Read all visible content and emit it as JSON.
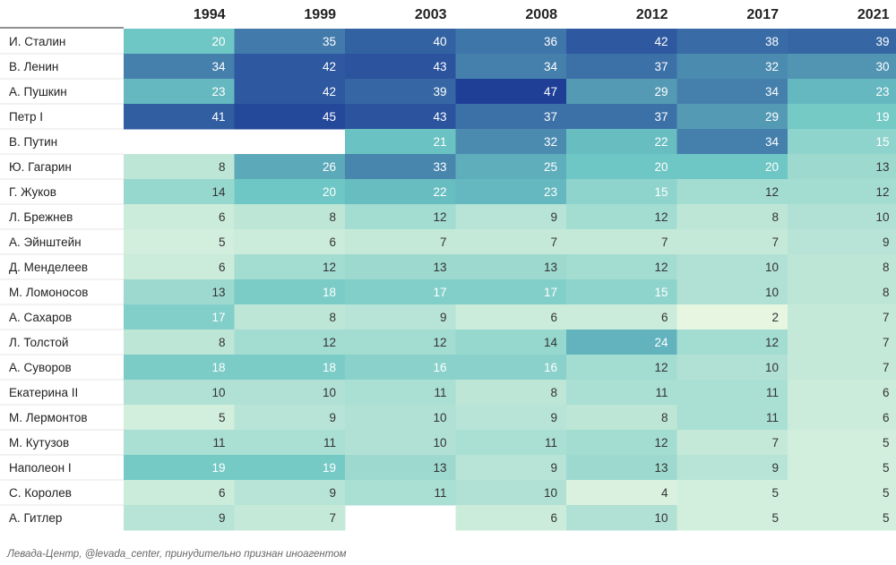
{
  "chart_data": {
    "type": "heatmap",
    "columns": [
      "1994",
      "1999",
      "2003",
      "2008",
      "2012",
      "2017",
      "2021"
    ],
    "rows": [
      {
        "name": "И. Сталин",
        "values": [
          20,
          35,
          40,
          36,
          42,
          38,
          39
        ]
      },
      {
        "name": "В. Ленин",
        "values": [
          34,
          42,
          43,
          34,
          37,
          32,
          30
        ]
      },
      {
        "name": "А. Пушкин",
        "values": [
          23,
          42,
          39,
          47,
          29,
          34,
          23
        ]
      },
      {
        "name": "Петр I",
        "values": [
          41,
          45,
          43,
          37,
          37,
          29,
          19
        ]
      },
      {
        "name": "В. Путин",
        "values": [
          null,
          null,
          21,
          32,
          22,
          34,
          15
        ]
      },
      {
        "name": "Ю. Гагарин",
        "values": [
          8,
          26,
          33,
          25,
          20,
          20,
          13
        ]
      },
      {
        "name": "Г. Жуков",
        "values": [
          14,
          20,
          22,
          23,
          15,
          12,
          12
        ]
      },
      {
        "name": "Л. Брежнев",
        "values": [
          6,
          8,
          12,
          9,
          12,
          8,
          10
        ]
      },
      {
        "name": "А. Эйнштейн",
        "values": [
          5,
          6,
          7,
          7,
          7,
          7,
          9
        ]
      },
      {
        "name": "Д. Менделеев",
        "values": [
          6,
          12,
          13,
          13,
          12,
          10,
          8
        ]
      },
      {
        "name": "М. Ломоносов",
        "values": [
          13,
          18,
          17,
          17,
          15,
          10,
          8
        ]
      },
      {
        "name": "А. Сахаров",
        "values": [
          17,
          8,
          9,
          6,
          6,
          2,
          7
        ]
      },
      {
        "name": "Л. Толстой",
        "values": [
          8,
          12,
          12,
          14,
          24,
          12,
          7
        ]
      },
      {
        "name": "А. Суворов",
        "values": [
          18,
          18,
          16,
          16,
          12,
          10,
          7
        ]
      },
      {
        "name": "Екатерина II",
        "values": [
          10,
          10,
          11,
          8,
          11,
          11,
          6
        ]
      },
      {
        "name": "М. Лермонтов",
        "values": [
          5,
          9,
          10,
          9,
          8,
          11,
          6
        ]
      },
      {
        "name": "М. Кутузов",
        "values": [
          11,
          11,
          10,
          11,
          12,
          7,
          5
        ]
      },
      {
        "name": "Наполеон I",
        "values": [
          19,
          19,
          13,
          9,
          13,
          9,
          5
        ]
      },
      {
        "name": "С. Королев",
        "values": [
          6,
          9,
          11,
          10,
          4,
          5,
          5
        ]
      },
      {
        "name": "А. Гитлер",
        "values": [
          9,
          7,
          null,
          6,
          10,
          5,
          5
        ]
      }
    ],
    "color_scale": {
      "min": 2,
      "max": 47,
      "low_color": "#e6f6e1",
      "mid_color": "#6ec7c4",
      "high_color": "#1f3f97"
    },
    "legend": "none",
    "grid": false
  },
  "source_text": "Левада-Центр, @levada_center, принудительно признан иноагентом"
}
